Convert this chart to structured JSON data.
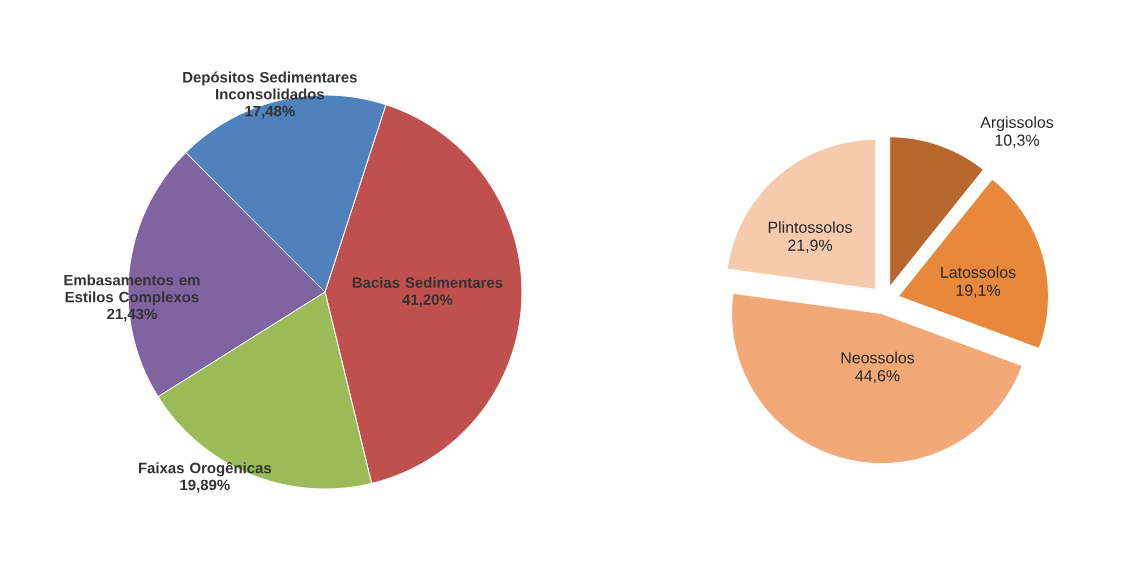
{
  "chart_data": [
    {
      "type": "pie",
      "categories": [
        "Bacias Sedimentares",
        "Faixas Orogênicas",
        "Embasamentos em Estilos Complexos",
        "Depósitos Sedimentares Inconsolidados"
      ],
      "values": [
        41.2,
        19.89,
        21.43,
        17.48
      ],
      "value_labels": [
        "41,20%",
        "19,89%",
        "21,43%",
        "17,48%"
      ],
      "colors": [
        "#c0504d",
        "#9bbb59",
        "#8064a2",
        "#4f81bd"
      ]
    },
    {
      "type": "pie",
      "categories": [
        "Argissolos",
        "Latossolos",
        "Neossolos",
        "Plintossolos"
      ],
      "values": [
        10.3,
        19.1,
        44.6,
        21.9
      ],
      "value_labels": [
        "10,3%",
        "19,1%",
        "44,6%",
        "21,9%"
      ],
      "colors": [
        "#b8682e",
        "#e8883a",
        "#f2a877",
        "#f6cbad"
      ]
    }
  ]
}
